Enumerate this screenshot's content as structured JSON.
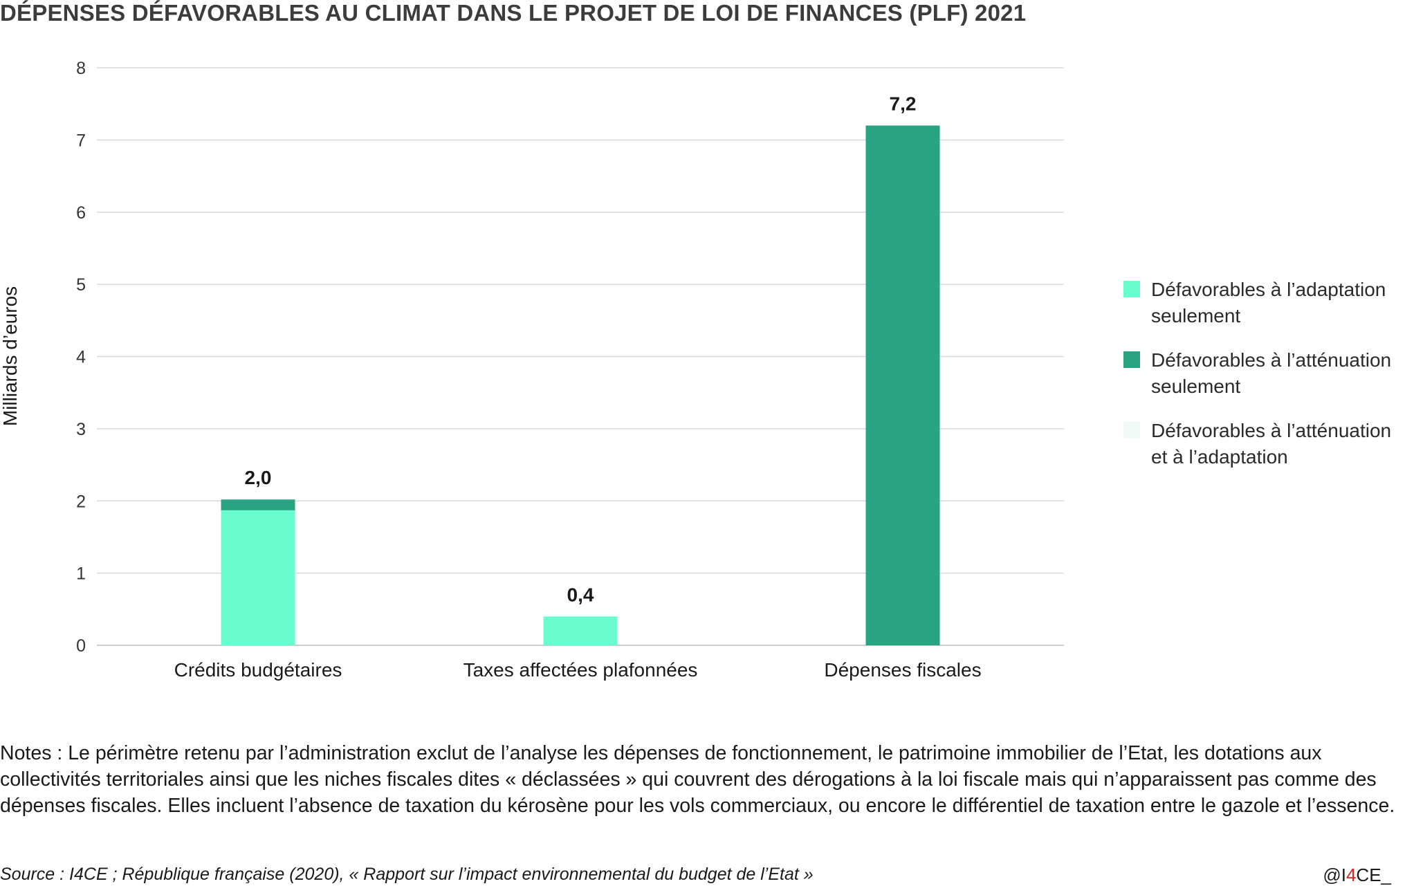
{
  "title": "DÉPENSES DÉFAVORABLES AU CLIMAT DANS LE PROJET DE LOI DE FINANCES (PLF) 2021",
  "chart_data": {
    "type": "bar",
    "stacked": true,
    "categories": [
      "Crédits budgétaires",
      "Taxes affectées plafonnées",
      "Dépenses fiscales"
    ],
    "series": [
      {
        "name": "Défavorables à l’adaptation seulement",
        "color": "#69fdcf",
        "values": [
          1.87,
          0.4,
          0
        ]
      },
      {
        "name": "Défavorables à l’atténuation seulement",
        "color": "#28a482",
        "values": [
          0.15,
          0,
          7.2
        ]
      },
      {
        "name": "Défavorables à l’atténuation et à l’adaptation",
        "color": "#f0fbf7",
        "values": [
          0,
          0,
          0
        ]
      }
    ],
    "totals_labels": [
      "2,0",
      "0,4",
      "7,2"
    ],
    "totals": [
      2.02,
      0.4,
      7.2
    ],
    "ylabel": "Milliards d’euros",
    "ylim": [
      0,
      8
    ],
    "yticks": [
      "0",
      "1",
      "2",
      "3",
      "4",
      "5",
      "6",
      "7",
      "8"
    ],
    "grid": true,
    "legend_position": "right"
  },
  "notes": "Notes : Le périmètre retenu par l’administration exclut de l’analyse les dépenses de fonctionnement, le patrimoine immobilier de l’Etat, les dotations aux collectivités territoriales ainsi que les niches fiscales dites « déclassées » qui couvrent des dérogations à la loi fiscale mais qui n’apparaissent pas comme des dépenses fiscales. Elles incluent l’absence de taxation du kérosène pour les vols commerciaux, ou encore le différentiel de taxation entre le gazole et l’essence.",
  "source": "Source : I4CE ; République française (2020), « Rapport sur l’impact environnemental du budget de l’Etat »",
  "credit": {
    "prefix": "@I",
    "accent": "4",
    "suffix": "CE_"
  }
}
